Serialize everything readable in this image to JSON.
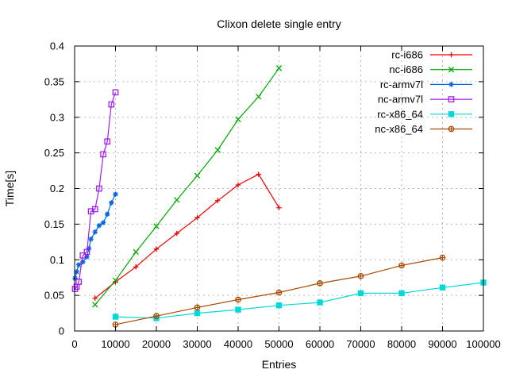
{
  "chart_data": {
    "type": "line",
    "title": "Clixon delete single entry",
    "xlabel": "Entries",
    "ylabel": "Time[s]",
    "xlim": [
      0,
      100000
    ],
    "ylim": [
      0,
      0.4
    ],
    "grid": true,
    "legend_position": "top-right-inside",
    "background": "#ffffff",
    "axis_color": "#000000",
    "grid_color": "#b8b8b8",
    "text_color": "#000000",
    "xticks": [
      {
        "value": 0,
        "label": "0"
      },
      {
        "value": 10000,
        "label": "10000"
      },
      {
        "value": 20000,
        "label": "20000"
      },
      {
        "value": 30000,
        "label": "30000"
      },
      {
        "value": 40000,
        "label": "40000"
      },
      {
        "value": 50000,
        "label": "50000"
      },
      {
        "value": 60000,
        "label": "60000"
      },
      {
        "value": 70000,
        "label": "70000"
      },
      {
        "value": 80000,
        "label": "80000"
      },
      {
        "value": 90000,
        "label": "90000"
      },
      {
        "value": 100000,
        "label": "100000"
      }
    ],
    "yticks": [
      {
        "value": 0,
        "label": "0"
      },
      {
        "value": 0.05,
        "label": "0.05"
      },
      {
        "value": 0.1,
        "label": "0.1"
      },
      {
        "value": 0.15,
        "label": "0.15"
      },
      {
        "value": 0.2,
        "label": "0.2"
      },
      {
        "value": 0.25,
        "label": "0.25"
      },
      {
        "value": 0.3,
        "label": "0.3"
      },
      {
        "value": 0.35,
        "label": "0.35"
      },
      {
        "value": 0.4,
        "label": "0.4"
      }
    ],
    "series": [
      {
        "name": "rc-i686",
        "color": "#f00000",
        "marker": "plus",
        "x": [
          5000,
          10000,
          15000,
          20000,
          25000,
          30000,
          35000,
          40000,
          45000,
          50000
        ],
        "y": [
          0.046,
          0.069,
          0.09,
          0.115,
          0.137,
          0.159,
          0.183,
          0.205,
          0.22,
          0.173
        ]
      },
      {
        "name": "nc-i686",
        "color": "#00a800",
        "marker": "cross",
        "x": [
          5000,
          10000,
          15000,
          20000,
          25000,
          30000,
          35000,
          40000,
          45000,
          50000
        ],
        "y": [
          0.037,
          0.071,
          0.111,
          0.147,
          0.184,
          0.218,
          0.254,
          0.297,
          0.329,
          0.369
        ]
      },
      {
        "name": "rc-armv7l",
        "color": "#0066dd",
        "marker": "asterisk",
        "x": [
          100,
          500,
          1000,
          2000,
          3000,
          3500,
          4000,
          5000,
          6000,
          7000,
          8000,
          9000,
          10000
        ],
        "y": [
          0.074,
          0.083,
          0.093,
          0.097,
          0.104,
          0.116,
          0.129,
          0.139,
          0.148,
          0.152,
          0.164,
          0.18,
          0.192
        ]
      },
      {
        "name": "nc-armv7l",
        "color": "#a020f0",
        "marker": "square-open",
        "x": [
          100,
          500,
          1000,
          2000,
          3000,
          4000,
          5000,
          6000,
          7000,
          8000,
          9000,
          10000
        ],
        "y": [
          0.059,
          0.062,
          0.069,
          0.106,
          0.111,
          0.168,
          0.171,
          0.2,
          0.248,
          0.266,
          0.318,
          0.335
        ]
      },
      {
        "name": "rc-x86_64",
        "color": "#00d8d8",
        "marker": "square-filled",
        "x": [
          10000,
          20000,
          30000,
          40000,
          50000,
          60000,
          70000,
          80000,
          90000,
          100000
        ],
        "y": [
          0.02,
          0.018,
          0.025,
          0.03,
          0.036,
          0.04,
          0.053,
          0.053,
          0.061,
          0.068
        ]
      },
      {
        "name": "nc-x86_64",
        "color": "#aa4a00",
        "marker": "circle-open",
        "x": [
          10000,
          20000,
          30000,
          40000,
          50000,
          60000,
          70000,
          80000,
          90000
        ],
        "y": [
          0.009,
          0.021,
          0.033,
          0.044,
          0.054,
          0.067,
          0.077,
          0.092,
          0.103
        ]
      }
    ]
  }
}
